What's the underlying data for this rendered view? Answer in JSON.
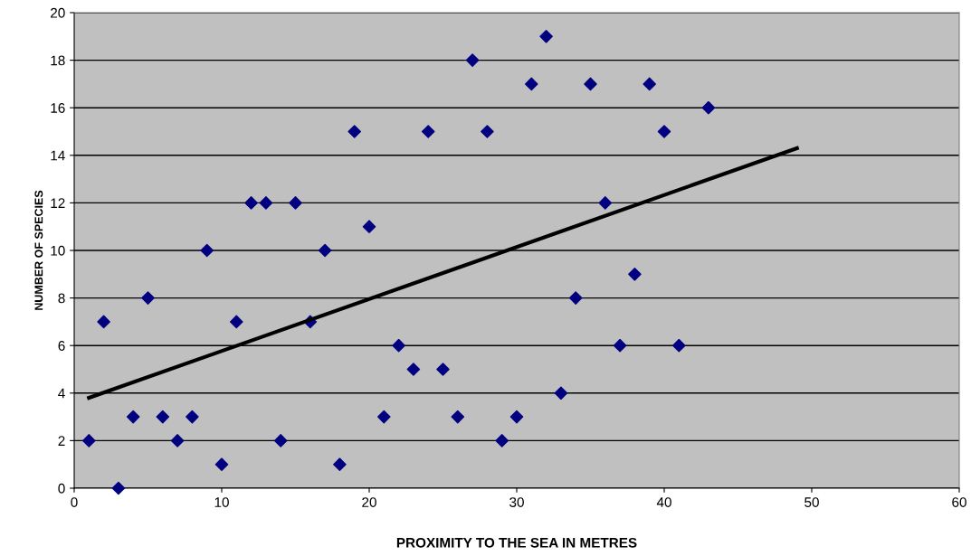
{
  "chart_data": {
    "type": "scatter",
    "xlabel": "PROXIMITY TO THE SEA IN METRES",
    "ylabel": "NUMBER OF SPECIES",
    "xlim": [
      0,
      60
    ],
    "xticks": [
      0,
      10,
      20,
      30,
      40,
      50,
      60
    ],
    "ylim": [
      0,
      20
    ],
    "yticks": [
      0,
      2,
      4,
      6,
      8,
      10,
      12,
      14,
      16,
      18,
      20
    ],
    "grid": "y",
    "marker": "diamond",
    "series": [
      {
        "color": "#000080",
        "x": [
          1,
          2,
          3,
          4,
          5,
          6,
          7,
          8,
          9,
          10,
          11,
          12,
          13,
          14,
          15,
          16,
          17,
          18,
          19,
          20,
          21,
          22,
          23,
          24,
          25,
          26,
          27,
          28,
          29,
          30,
          31,
          32,
          33,
          34,
          35,
          36,
          37,
          38,
          39,
          40,
          41,
          43
        ],
        "values": [
          2,
          7,
          0,
          3,
          8,
          3,
          2,
          3,
          10,
          1,
          7,
          12,
          12,
          2,
          12,
          7,
          10,
          1,
          15,
          11,
          3,
          6,
          5,
          15,
          5,
          3,
          18,
          15,
          2,
          3,
          17,
          19,
          4,
          8,
          17,
          12,
          6,
          9,
          17,
          15,
          6,
          16
        ]
      },
      {
        "type": "line",
        "color": "#000000",
        "marker": "none",
        "x": [
          1,
          49
        ],
        "values": [
          3.8,
          14.3
        ]
      }
    ]
  }
}
